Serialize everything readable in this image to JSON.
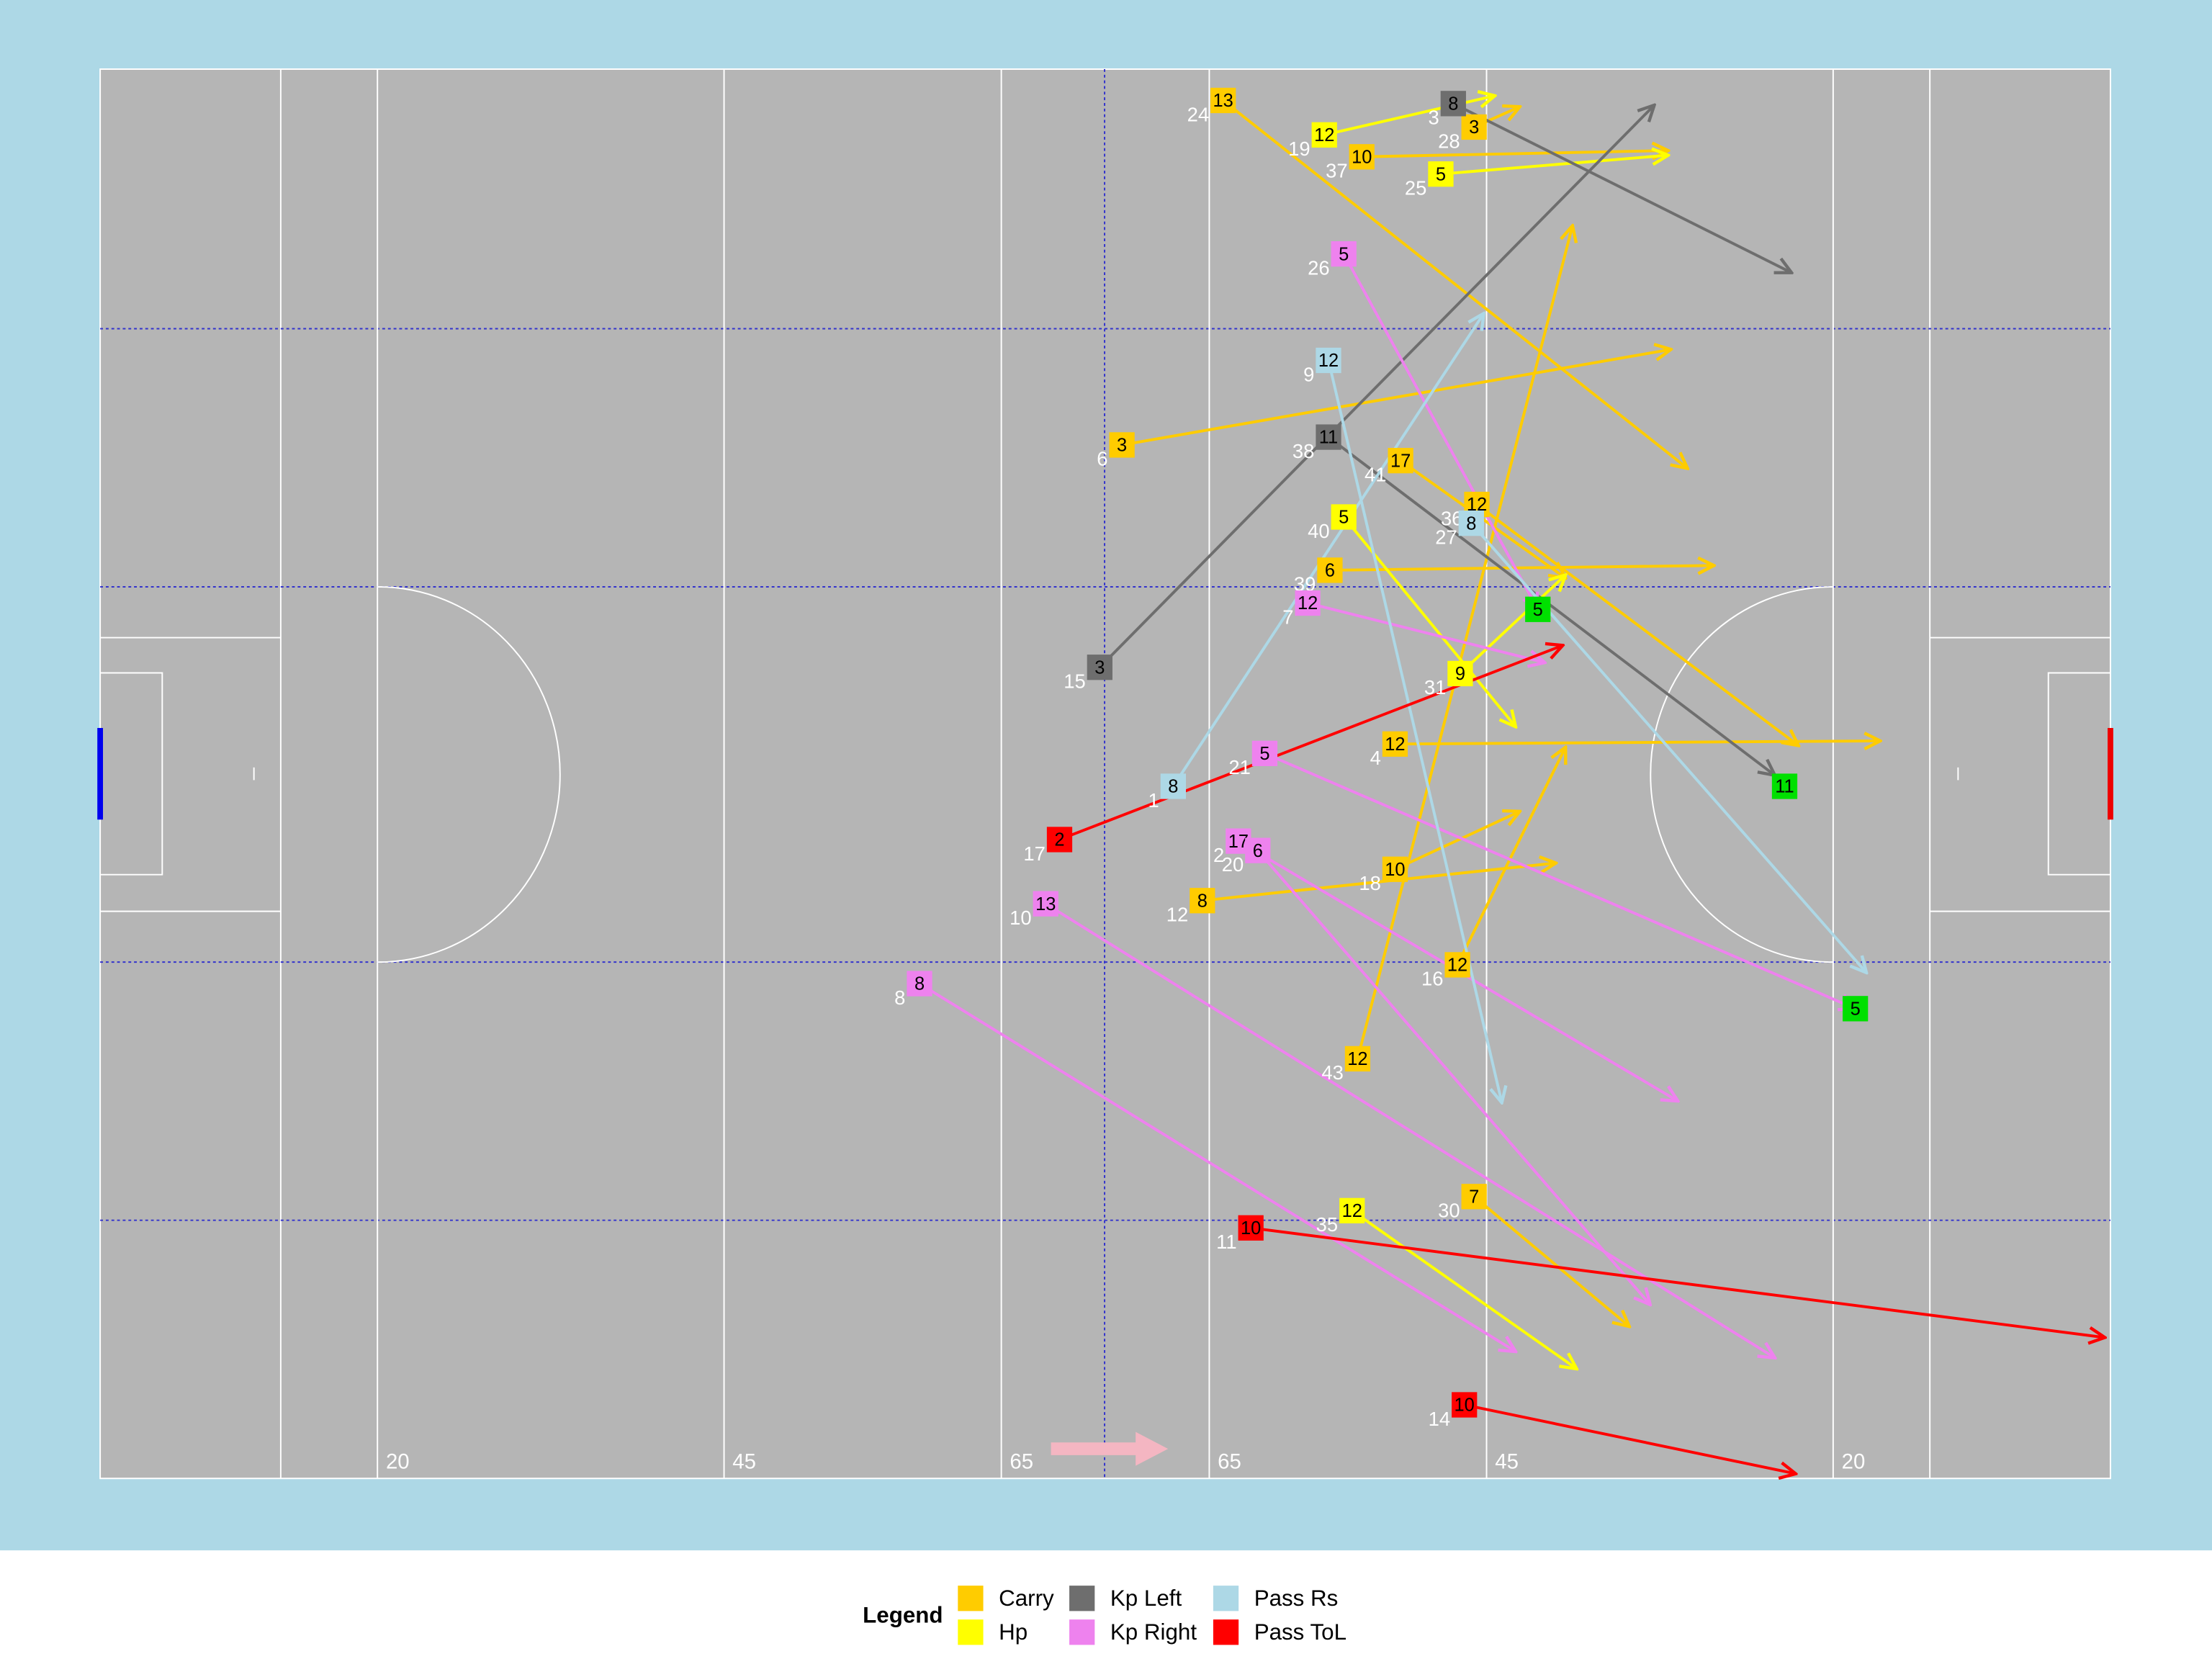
{
  "chart_data": {
    "type": "pitch-arrows",
    "xlim": [
      0,
      145
    ],
    "ylim": [
      0,
      90
    ],
    "xticks": [
      20,
      45,
      65,
      {
        "value": 80,
        "label": "65"
      },
      {
        "value": 100,
        "label": "45"
      },
      {
        "value": 125,
        "label": "20"
      }
    ],
    "legend_title": "Legend",
    "series": [
      {
        "name": "Carry",
        "color": "#FFCC00",
        "players": [
          "13",
          "10",
          "3",
          "17",
          "12",
          "6",
          "12",
          "10",
          "8",
          "12",
          "12",
          "7",
          "3"
        ],
        "seq": [
          "24",
          "37",
          "6",
          "41",
          "36",
          "39",
          "4",
          "18",
          "12",
          "16",
          "43",
          "30",
          "28"
        ],
        "x": [
          81.0,
          91.0,
          73.7,
          93.8,
          99.3,
          88.7,
          93.4,
          93.4,
          79.5,
          97.9,
          90.7,
          99.1,
          99.1
        ],
        "y": [
          2.0,
          5.6,
          24.0,
          25.0,
          27.8,
          32.0,
          43.1,
          51.1,
          53.1,
          57.2,
          63.2,
          72.0,
          3.7
        ],
        "x_end": [
          114.5,
          113.1,
          113.3,
          105.7,
          122.5,
          116.4,
          128.4,
          102.4,
          105.0,
          105.7,
          106.2,
          110.3,
          102.4
        ],
        "y_end": [
          25.5,
          5.2,
          17.9,
          32.5,
          43.2,
          31.7,
          42.9,
          47.4,
          50.7,
          43.3,
          10.0,
          80.3,
          2.4
        ]
      },
      {
        "name": "Hp",
        "color": "#FFFF00",
        "players": [
          "12",
          "5",
          "5",
          "9",
          "12"
        ],
        "seq": [
          "19",
          "25",
          "40",
          "31",
          "35"
        ],
        "x": [
          88.3,
          96.7,
          89.7,
          98.1,
          90.3
        ],
        "y": [
          4.2,
          6.7,
          28.6,
          38.6,
          72.9
        ],
        "x_end": [
          100.6,
          113.1,
          102.1,
          105.7,
          106.5
        ],
        "y_end": [
          1.7,
          5.5,
          42.0,
          32.3,
          83.0
        ]
      },
      {
        "name": "Kp Left",
        "color": "#6E6E6E",
        "players": [
          "8",
          "11",
          "3"
        ],
        "seq": [
          "3",
          "38",
          "15"
        ],
        "x": [
          97.6,
          88.6,
          72.1
        ],
        "y": [
          2.2,
          23.5,
          38.2
        ],
        "x_end": [
          122.0,
          120.8,
          112.1
        ],
        "y_end": [
          13.0,
          45.1,
          2.3
        ]
      },
      {
        "name": "Kp Right",
        "color": "#EE82EE",
        "players": [
          "5",
          "12",
          "5",
          "17",
          "6",
          "13",
          "8"
        ],
        "seq": [
          "26",
          "7",
          "21",
          "2",
          "20",
          "10",
          "8"
        ],
        "x": [
          89.7,
          87.1,
          84.0,
          82.1,
          83.5,
          68.2,
          59.1
        ],
        "y": [
          11.8,
          34.1,
          43.7,
          49.3,
          49.9,
          53.3,
          58.4
        ],
        "x_end": [
          103.7,
          104.2,
          126.6,
          113.8,
          111.8,
          120.8,
          102.1
        ],
        "y_end": [
          34.5,
          37.9,
          60.0,
          65.9,
          78.9,
          82.3,
          81.9
        ]
      },
      {
        "name": "Pass Rs",
        "color": "#ADD8E6",
        "players": [
          "12",
          "8",
          "8"
        ],
        "seq": [
          "9",
          "1",
          "27"
        ],
        "x": [
          88.6,
          77.4,
          98.9
        ],
        "y": [
          18.6,
          45.8,
          29.0
        ],
        "x_end": [
          101.1,
          99.8,
          127.4
        ],
        "y_end": [
          66.0,
          15.6,
          57.7
        ]
      },
      {
        "name": "Pass ToL",
        "color": "#FF0000",
        "players": [
          "2",
          "10",
          "10"
        ],
        "seq": [
          "17",
          "11",
          "14"
        ],
        "x": [
          69.2,
          83.0,
          98.4
        ],
        "y": [
          49.2,
          74.0,
          85.3
        ],
        "x_end": [
          105.5,
          144.6,
          122.3
        ],
        "y_end": [
          36.8,
          81.0,
          89.7
        ]
      }
    ],
    "points": {
      "color": "#00E000",
      "labels": [
        "5",
        "11",
        "5"
      ],
      "x": [
        103.7,
        121.5,
        126.6
      ],
      "y": [
        34.5,
        45.8,
        60.0
      ]
    }
  }
}
